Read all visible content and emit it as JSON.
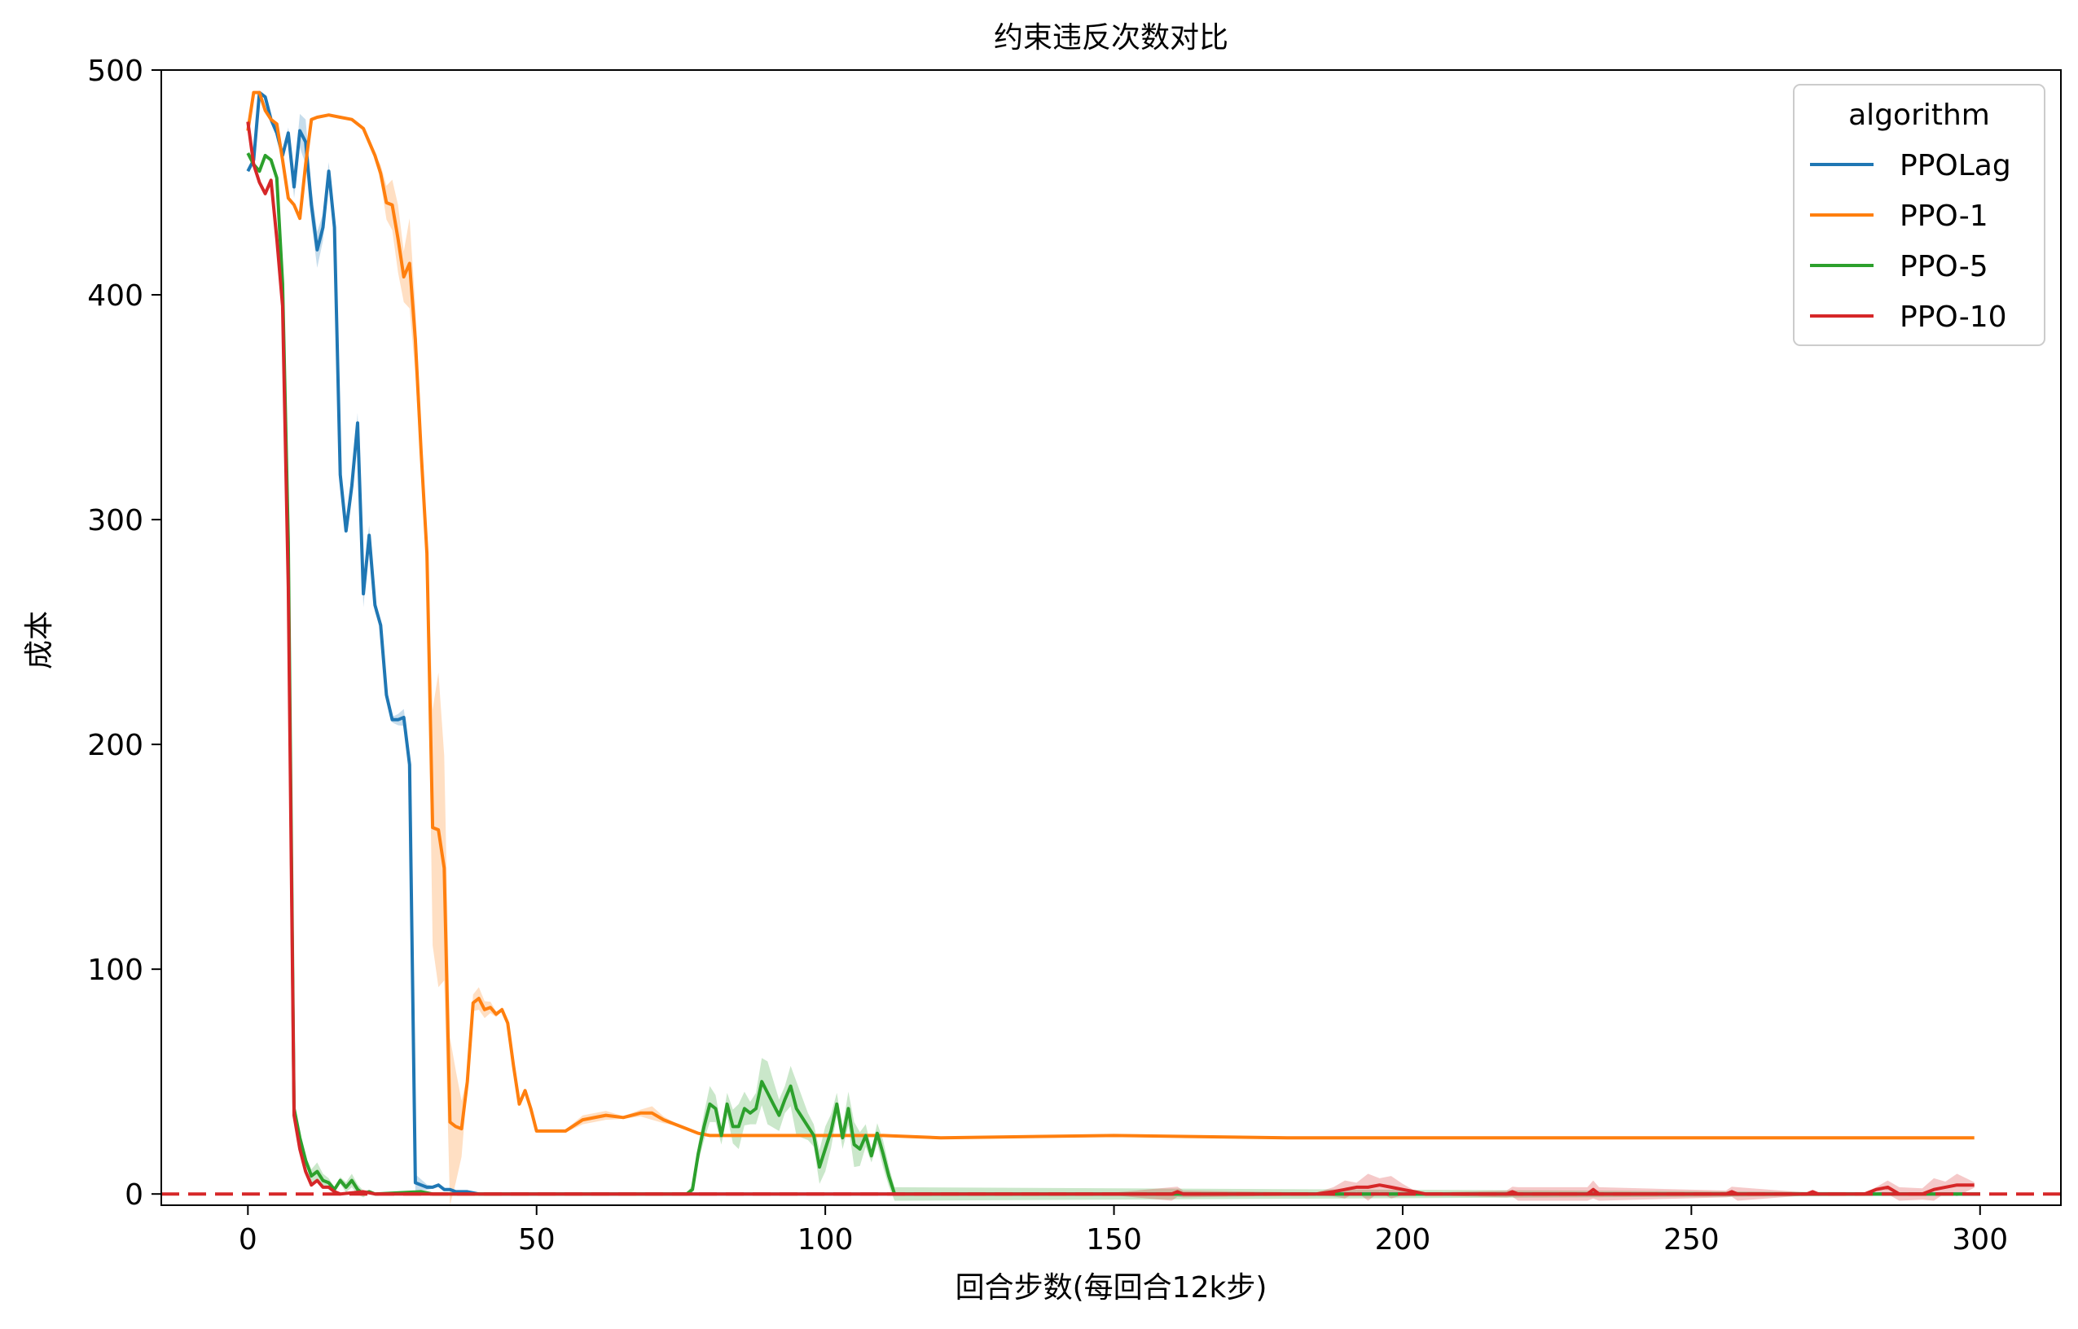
{
  "chart_data": {
    "type": "line",
    "title": "约束违反次数对比",
    "xlabel": "回合步数(每回合12k步)",
    "ylabel": "成本",
    "xlim": [
      -15,
      314
    ],
    "ylim": [
      -5,
      500
    ],
    "xticks": [
      "0",
      "50",
      "100",
      "150",
      "200",
      "250",
      "300"
    ],
    "xtick_values": [
      0,
      50,
      100,
      150,
      200,
      250,
      300
    ],
    "yticks": [
      "0",
      "100",
      "200",
      "300",
      "400",
      "500"
    ],
    "ytick_values": [
      0,
      100,
      200,
      300,
      400,
      500
    ],
    "grid": false,
    "legend": {
      "title": "algorithm",
      "placement": "top-right"
    },
    "threshold": {
      "y": 0,
      "color": "#d62728",
      "style": "dashed"
    },
    "series": [
      {
        "name": "PPOLag",
        "color": "#1f77b4",
        "points": [
          [
            0,
            455
          ],
          [
            1,
            460
          ],
          [
            2,
            490
          ],
          [
            3,
            488
          ],
          [
            4,
            478
          ],
          [
            5,
            472
          ],
          [
            6,
            462
          ],
          [
            7,
            472
          ],
          [
            8,
            448
          ],
          [
            9,
            473
          ],
          [
            10,
            468
          ],
          [
            11,
            440
          ],
          [
            12,
            420
          ],
          [
            13,
            430
          ],
          [
            14,
            455
          ],
          [
            15,
            430
          ],
          [
            16,
            320
          ],
          [
            17,
            295
          ],
          [
            18,
            315
          ],
          [
            19,
            343
          ],
          [
            20,
            267
          ],
          [
            21,
            293
          ],
          [
            22,
            262
          ],
          [
            23,
            253
          ],
          [
            24,
            222
          ],
          [
            25,
            211
          ],
          [
            26,
            211
          ],
          [
            27,
            212
          ],
          [
            28,
            191
          ],
          [
            29,
            5
          ],
          [
            30,
            4
          ],
          [
            31,
            3
          ],
          [
            32,
            3
          ],
          [
            33,
            4
          ],
          [
            34,
            2
          ],
          [
            35,
            2
          ],
          [
            36,
            1
          ],
          [
            38,
            1
          ],
          [
            40,
            0
          ],
          [
            300,
            0
          ]
        ],
        "band": [
          [
            10,
            10
          ],
          [
            12,
            8
          ],
          [
            20,
            6
          ],
          [
            28,
            5
          ]
        ]
      },
      {
        "name": "PPO-1",
        "color": "#ff7f0e",
        "points": [
          [
            0,
            473
          ],
          [
            1,
            490
          ],
          [
            2,
            490
          ],
          [
            3,
            482
          ],
          [
            4,
            478
          ],
          [
            5,
            476
          ],
          [
            6,
            460
          ],
          [
            7,
            443
          ],
          [
            8,
            440
          ],
          [
            9,
            434
          ],
          [
            10,
            458
          ],
          [
            11,
            478
          ],
          [
            12,
            479
          ],
          [
            14,
            480
          ],
          [
            16,
            479
          ],
          [
            18,
            478
          ],
          [
            20,
            474
          ],
          [
            22,
            462
          ],
          [
            23,
            454
          ],
          [
            24,
            441
          ],
          [
            25,
            440
          ],
          [
            26,
            425
          ],
          [
            27,
            408
          ],
          [
            28,
            414
          ],
          [
            29,
            380
          ],
          [
            30,
            330
          ],
          [
            31,
            285
          ],
          [
            32,
            163
          ],
          [
            33,
            162
          ],
          [
            34,
            145
          ],
          [
            35,
            32
          ],
          [
            36,
            30
          ],
          [
            37,
            29
          ],
          [
            38,
            50
          ],
          [
            39,
            85
          ],
          [
            40,
            87
          ],
          [
            41,
            82
          ],
          [
            42,
            83
          ],
          [
            43,
            80
          ],
          [
            44,
            82
          ],
          [
            45,
            76
          ],
          [
            46,
            57
          ],
          [
            47,
            40
          ],
          [
            48,
            46
          ],
          [
            49,
            38
          ],
          [
            50,
            28
          ],
          [
            52,
            28
          ],
          [
            55,
            28
          ],
          [
            58,
            33
          ],
          [
            62,
            35
          ],
          [
            65,
            34
          ],
          [
            68,
            36
          ],
          [
            70,
            36
          ],
          [
            72,
            33
          ],
          [
            74,
            31
          ],
          [
            76,
            29
          ],
          [
            78,
            27
          ],
          [
            80,
            26
          ],
          [
            90,
            26
          ],
          [
            100,
            26
          ],
          [
            110,
            26
          ],
          [
            120,
            25
          ],
          [
            150,
            26
          ],
          [
            180,
            25
          ],
          [
            210,
            25
          ],
          [
            240,
            25
          ],
          [
            270,
            25
          ],
          [
            299,
            25
          ]
        ],
        "band": [
          [
            26,
            15
          ],
          [
            28,
            20
          ],
          [
            30,
            10
          ],
          [
            33,
            70
          ],
          [
            34,
            50
          ],
          [
            40,
            5
          ],
          [
            60,
            4
          ],
          [
            70,
            3
          ]
        ]
      },
      {
        "name": "PPO-5",
        "color": "#2ca02c",
        "points": [
          [
            0,
            463
          ],
          [
            1,
            458
          ],
          [
            2,
            455
          ],
          [
            3,
            462
          ],
          [
            4,
            460
          ],
          [
            5,
            452
          ],
          [
            6,
            405
          ],
          [
            7,
            290
          ],
          [
            8,
            38
          ],
          [
            9,
            25
          ],
          [
            10,
            15
          ],
          [
            11,
            8
          ],
          [
            12,
            10
          ],
          [
            13,
            6
          ],
          [
            14,
            5
          ],
          [
            15,
            2
          ],
          [
            16,
            6
          ],
          [
            17,
            3
          ],
          [
            18,
            6
          ],
          [
            19,
            2
          ],
          [
            20,
            0
          ],
          [
            21,
            1
          ],
          [
            22,
            0
          ],
          [
            30,
            1
          ],
          [
            32,
            0
          ],
          [
            76,
            0
          ],
          [
            77,
            2
          ],
          [
            78,
            18
          ],
          [
            79,
            30
          ],
          [
            80,
            40
          ],
          [
            81,
            38
          ],
          [
            82,
            26
          ],
          [
            83,
            40
          ],
          [
            84,
            30
          ],
          [
            85,
            30
          ],
          [
            86,
            38
          ],
          [
            87,
            36
          ],
          [
            88,
            38
          ],
          [
            89,
            50
          ],
          [
            90,
            45
          ],
          [
            91,
            40
          ],
          [
            92,
            35
          ],
          [
            93,
            42
          ],
          [
            94,
            48
          ],
          [
            95,
            38
          ],
          [
            96,
            34
          ],
          [
            97,
            30
          ],
          [
            98,
            26
          ],
          [
            99,
            12
          ],
          [
            100,
            20
          ],
          [
            101,
            28
          ],
          [
            102,
            40
          ],
          [
            103,
            25
          ],
          [
            104,
            38
          ],
          [
            105,
            22
          ],
          [
            106,
            20
          ],
          [
            107,
            26
          ],
          [
            108,
            17
          ],
          [
            109,
            27
          ],
          [
            110,
            18
          ],
          [
            111,
            8
          ],
          [
            112,
            0
          ],
          [
            300,
            0
          ]
        ],
        "band": [
          [
            8,
            3
          ],
          [
            12,
            4
          ],
          [
            18,
            3
          ],
          [
            80,
            8
          ],
          [
            85,
            10
          ],
          [
            90,
            14
          ],
          [
            95,
            12
          ],
          [
            100,
            10
          ],
          [
            105,
            10
          ],
          [
            110,
            6
          ]
        ]
      },
      {
        "name": "PPO-10",
        "color": "#d62728",
        "points": [
          [
            0,
            477
          ],
          [
            1,
            458
          ],
          [
            2,
            450
          ],
          [
            3,
            445
          ],
          [
            4,
            451
          ],
          [
            5,
            425
          ],
          [
            6,
            395
          ],
          [
            7,
            270
          ],
          [
            8,
            35
          ],
          [
            9,
            20
          ],
          [
            10,
            10
          ],
          [
            11,
            4
          ],
          [
            12,
            6
          ],
          [
            13,
            3
          ],
          [
            14,
            3
          ],
          [
            15,
            1
          ],
          [
            16,
            0
          ],
          [
            20,
            1
          ],
          [
            22,
            0
          ],
          [
            50,
            0
          ],
          [
            100,
            0
          ],
          [
            150,
            0
          ],
          [
            160,
            0
          ],
          [
            161,
            1
          ],
          [
            162,
            0
          ],
          [
            185,
            0
          ],
          [
            188,
            1
          ],
          [
            190,
            2
          ],
          [
            192,
            3
          ],
          [
            194,
            3
          ],
          [
            196,
            4
          ],
          [
            198,
            3
          ],
          [
            200,
            2
          ],
          [
            202,
            1
          ],
          [
            204,
            0
          ],
          [
            218,
            0
          ],
          [
            219,
            1
          ],
          [
            220,
            0
          ],
          [
            232,
            0
          ],
          [
            233,
            2
          ],
          [
            234,
            0
          ],
          [
            256,
            0
          ],
          [
            257,
            1
          ],
          [
            258,
            0
          ],
          [
            270,
            0
          ],
          [
            271,
            1
          ],
          [
            272,
            0
          ],
          [
            280,
            0
          ],
          [
            282,
            2
          ],
          [
            284,
            3
          ],
          [
            286,
            0
          ],
          [
            290,
            0
          ],
          [
            292,
            2
          ],
          [
            294,
            3
          ],
          [
            296,
            4
          ],
          [
            299,
            4
          ]
        ],
        "band": [
          [
            160,
            3
          ],
          [
            190,
            4
          ],
          [
            194,
            6
          ],
          [
            198,
            5
          ],
          [
            220,
            3
          ],
          [
            233,
            4
          ],
          [
            258,
            3
          ],
          [
            285,
            4
          ],
          [
            292,
            5
          ],
          [
            296,
            5
          ]
        ]
      }
    ]
  }
}
